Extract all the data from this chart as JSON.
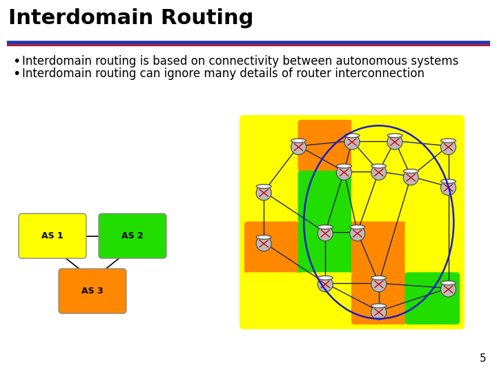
{
  "title": "Interdomain Routing",
  "title_fontsize": 22,
  "title_color": "#000000",
  "separator_color1": "#2233aa",
  "separator_color2": "#cc0000",
  "bullets": [
    "Interdomain routing is based on connectivity between autonomous systems",
    "Interdomain routing can ignore many details of router interconnection"
  ],
  "bullet_fontsize": 12,
  "background_color": "#ffffff",
  "page_number": "5",
  "as1_color": "#ffff00",
  "as2_color": "#22dd00",
  "as3_color": "#ff8800",
  "yellow_color": "#ffff00",
  "orange_color": "#ff8800",
  "green_color": "#22dd00",
  "blue_arc_color": "#1a1acc",
  "edge_color": "#222266",
  "router_body": "#bbbbbb",
  "router_top": "#dddddd",
  "router_edge": "#444444",
  "router_x_color": "#cc0000"
}
